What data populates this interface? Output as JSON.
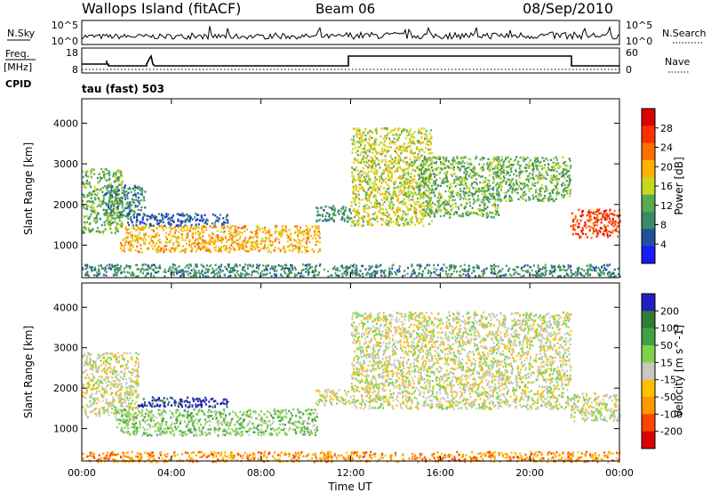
{
  "header": {
    "station": "Wallops Island (fitACF)",
    "beam": "Beam 06",
    "date": "08/Sep/2010"
  },
  "strip_noise": {
    "left_label": "N.Sky",
    "left_ticks": [
      "10^5",
      "10^0"
    ],
    "right_ticks": [
      "10^5",
      "10^0"
    ],
    "right_label": "N.Search"
  },
  "strip_freq": {
    "left_label_top": "Freq.",
    "left_label_unit": "[MHz]",
    "left_ticks": [
      "18",
      "8"
    ],
    "right_ticks": [
      "60",
      "0"
    ],
    "right_label": "Nave",
    "cpid_label": "CPID",
    "cpid_value": "tau (fast) 503"
  },
  "colors": {
    "power": [
      "#1a1aff",
      "#2050a0",
      "#3a8a6a",
      "#5aaa50",
      "#c8d820",
      "#ffb000",
      "#ff7000",
      "#ff3000",
      "#dd0000"
    ],
    "velocity": [
      "#2020c0",
      "#2e7d32",
      "#43a047",
      "#7ed348",
      "#c8c8c0",
      "#ffc000",
      "#ff9900",
      "#ff4400",
      "#dd0000"
    ]
  },
  "chart_data": [
    {
      "type": "heatmap",
      "name": "power-panel",
      "xlabel": "",
      "ylabel": "Slant Range [km]",
      "x_ticks": [
        "00:00",
        "04:00",
        "08:00",
        "12:00",
        "16:00",
        "20:00",
        "00:00"
      ],
      "y_ticks": [
        "1000",
        "2000",
        "3000",
        "4000"
      ],
      "xlim": [
        0,
        24
      ],
      "ylim": [
        200,
        4600
      ],
      "colorbar": {
        "label": "Power [dB]",
        "ticks": [
          "4",
          "8",
          "12",
          "16",
          "20",
          "24",
          "28"
        ],
        "range": [
          0,
          30
        ]
      },
      "regions": [
        {
          "t0": 0.0,
          "t1": 1.8,
          "r0": 1300,
          "r1": 2900,
          "level": 3
        },
        {
          "t0": 1.0,
          "t1": 2.8,
          "r0": 1700,
          "r1": 2500,
          "level": 2
        },
        {
          "t0": 1.7,
          "t1": 10.6,
          "r0": 850,
          "r1": 1500,
          "level": 5
        },
        {
          "t0": 2.0,
          "t1": 6.5,
          "r0": 1500,
          "r1": 1800,
          "level": 1
        },
        {
          "t0": 10.4,
          "t1": 12.0,
          "r0": 1600,
          "r1": 2000,
          "level": 2
        },
        {
          "t0": 12.0,
          "t1": 15.6,
          "r0": 1500,
          "r1": 3900,
          "level": 4
        },
        {
          "t0": 15.0,
          "t1": 18.6,
          "r0": 1700,
          "r1": 3200,
          "level": 3
        },
        {
          "t0": 18.5,
          "t1": 21.8,
          "r0": 2100,
          "r1": 3200,
          "level": 3
        },
        {
          "t0": 21.8,
          "t1": 24.0,
          "r0": 1200,
          "r1": 1900,
          "level": 7
        },
        {
          "t0": 0.0,
          "t1": 24.0,
          "r0": 250,
          "r1": 550,
          "level": 2
        }
      ]
    },
    {
      "type": "heatmap",
      "name": "velocity-panel",
      "xlabel": "Time UT",
      "ylabel": "Slant Range [km]",
      "x_ticks": [
        "00:00",
        "04:00",
        "08:00",
        "12:00",
        "16:00",
        "20:00",
        "00:00"
      ],
      "y_ticks": [
        "1000",
        "2000",
        "3000",
        "4000"
      ],
      "xlim": [
        0,
        24
      ],
      "ylim": [
        200,
        4600
      ],
      "colorbar": {
        "label": "Velocity [m s^-1]",
        "ticks": [
          "200",
          "100",
          "50",
          "15",
          "-15",
          "-50",
          "-100",
          "-200"
        ],
        "range": [
          -250,
          250
        ]
      },
      "regions": [
        {
          "t0": 0.0,
          "t1": 2.5,
          "r0": 1300,
          "r1": 2900,
          "level": 4
        },
        {
          "t0": 2.5,
          "t1": 6.5,
          "r0": 1550,
          "r1": 1800,
          "level": 0
        },
        {
          "t0": 1.5,
          "t1": 10.5,
          "r0": 850,
          "r1": 1500,
          "level": 3
        },
        {
          "t0": 10.4,
          "t1": 12.0,
          "r0": 1600,
          "r1": 2000,
          "level": 4
        },
        {
          "t0": 12.0,
          "t1": 21.8,
          "r0": 1500,
          "r1": 3900,
          "level": 4
        },
        {
          "t0": 21.8,
          "t1": 24.0,
          "r0": 1200,
          "r1": 1900,
          "level": 4
        },
        {
          "t0": 0.0,
          "t1": 24.0,
          "r0": 200,
          "r1": 450,
          "level": 6
        }
      ]
    }
  ]
}
